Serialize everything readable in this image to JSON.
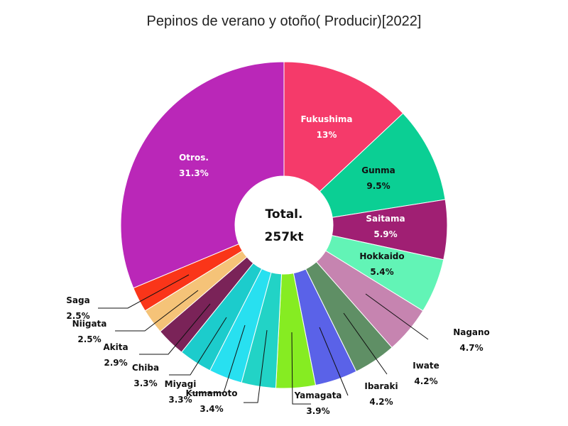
{
  "chart_data": {
    "type": "pie",
    "title": "Pepinos de verano y otoño( Producir)[2022]",
    "center_label": "Total.",
    "center_value": "257kt",
    "slices": [
      {
        "name": "Fukushima",
        "percent_label": "13%",
        "value": 13.0,
        "color": "#f53a6a"
      },
      {
        "name": "Gunma",
        "percent_label": "9.5%",
        "value": 9.5,
        "color": "#0bcf94"
      },
      {
        "name": "Saitama",
        "percent_label": "5.9%",
        "value": 5.9,
        "color": "#a01f73"
      },
      {
        "name": "Hokkaido",
        "percent_label": "5.4%",
        "value": 5.4,
        "color": "#62f4b6"
      },
      {
        "name": "Nagano",
        "percent_label": "4.7%",
        "value": 4.7,
        "color": "#c684b0"
      },
      {
        "name": "Iwate",
        "percent_label": "4.2%",
        "value": 4.2,
        "color": "#5f8f65"
      },
      {
        "name": "Ibaraki",
        "percent_label": "4.2%",
        "value": 4.2,
        "color": "#5a62e8"
      },
      {
        "name": "Yamagata",
        "percent_label": "3.9%",
        "value": 3.9,
        "color": "#86ec22"
      },
      {
        "name": "Kumamoto",
        "percent_label": "3.4%",
        "value": 3.4,
        "color": "#22d3c6"
      },
      {
        "name": "Miyagi",
        "percent_label": "3.3%",
        "value": 3.3,
        "color": "#28e0f0"
      },
      {
        "name": "Chiba",
        "percent_label": "3.3%",
        "value": 3.3,
        "color": "#1ccccc"
      },
      {
        "name": "Akita",
        "percent_label": "2.9%",
        "value": 2.9,
        "color": "#7a2358"
      },
      {
        "name": "Niigata",
        "percent_label": "2.5%",
        "value": 2.5,
        "color": "#f5c378"
      },
      {
        "name": "Saga",
        "percent_label": "2.5%",
        "value": 2.5,
        "color": "#fa3519"
      },
      {
        "name": "Otros.",
        "percent_label": "31.3%",
        "value": 31.3,
        "color": "#ba27b8"
      }
    ]
  }
}
